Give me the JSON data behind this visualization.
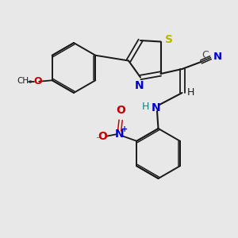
{
  "bg": "#e8e8e8",
  "bond_color": "#1a1a1a",
  "s_color": "#b8b800",
  "n_color": "#0000cc",
  "o_color": "#cc0000",
  "c_color": "#444444",
  "nh_color": "#008888",
  "figsize": [
    3.0,
    3.0
  ],
  "dpi": 100,
  "xlim": [
    0,
    10
  ],
  "ylim": [
    0,
    10
  ]
}
